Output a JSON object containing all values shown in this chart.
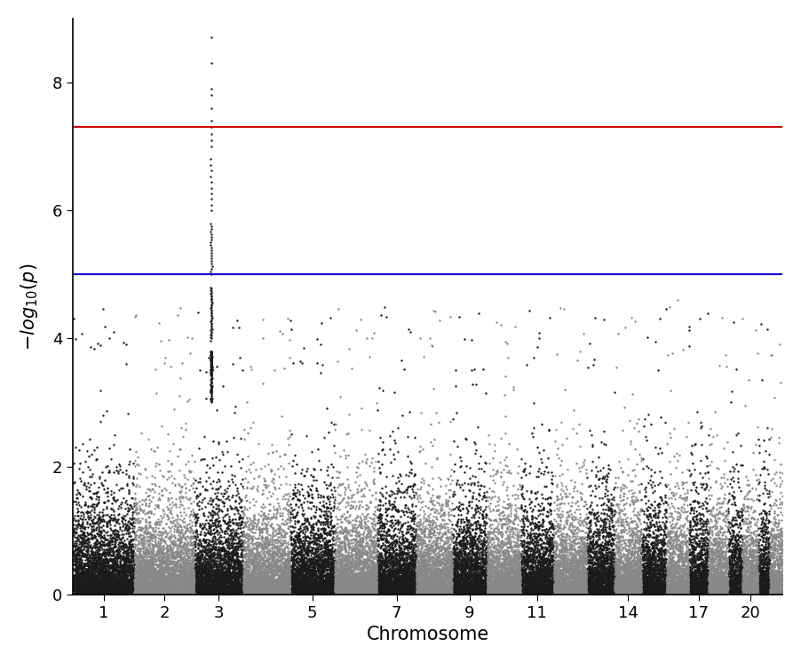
{
  "title": "",
  "xlabel": "Chromosome",
  "ylabel": "$-log_{10}(p)$",
  "ylim": [
    0,
    9
  ],
  "yticks": [
    0,
    2,
    4,
    6,
    8
  ],
  "red_line": 7.3,
  "blue_line": 5.0,
  "red_color": "#cc0000",
  "blue_color": "#0000cc",
  "chrom_colors": [
    "#1a1a1a",
    "#888888"
  ],
  "n_chromosomes": 22,
  "xtick_labels": [
    "1",
    "2",
    "3",
    "5",
    "7",
    "9",
    "11",
    "14",
    "17",
    "20"
  ],
  "xtick_chroms": [
    1,
    2,
    3,
    5,
    7,
    9,
    11,
    14,
    17,
    20
  ],
  "random_seed": 42,
  "point_size": 3,
  "background_color": "#ffffff",
  "spine_color": "#000000",
  "label_fontsize": 15,
  "tick_fontsize": 13
}
